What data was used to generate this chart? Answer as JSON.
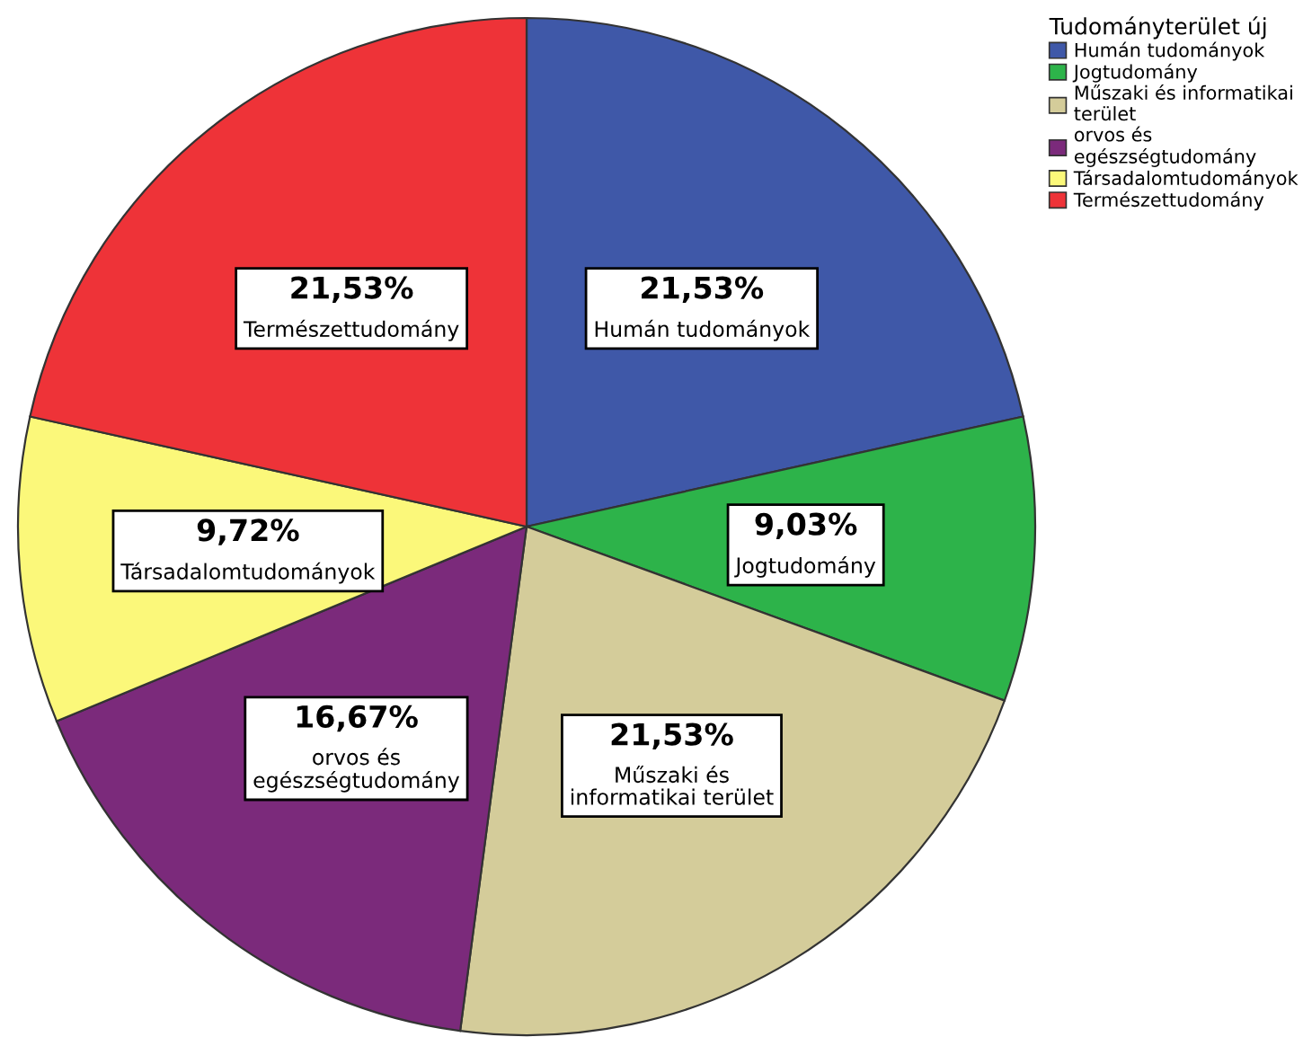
{
  "chart_data": {
    "type": "pie",
    "legend_title": "Tudományterület új",
    "legend": "top right",
    "categories": [
      "Humán tudományok",
      "Jogtudomány",
      "Műszaki és informatikai terület",
      "orvos és egészségtudomány",
      "Társadalomtudományok",
      "Természettudomány"
    ],
    "values": [
      21.53,
      9.03,
      21.53,
      16.67,
      9.72,
      21.53
    ],
    "value_labels": [
      "21,53%",
      "9,03%",
      "21,53%",
      "16,67%",
      "9,72%",
      "21,53%"
    ],
    "colors": [
      "#3f58a8",
      "#2db34a",
      "#d4cc9a",
      "#7b2a7b",
      "#fbf87a",
      "#ee3338"
    ]
  }
}
